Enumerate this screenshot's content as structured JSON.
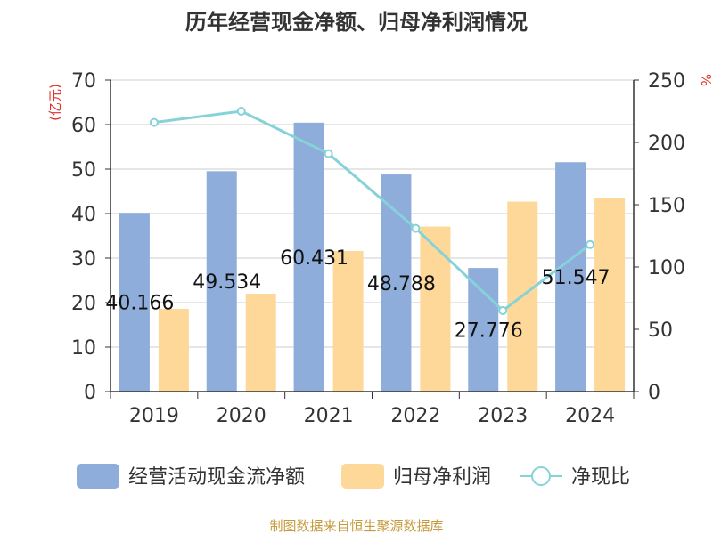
{
  "chart_data": {
    "type": "bar",
    "title": "历年经营现金净额、归母净利润情况",
    "categories": [
      "2019",
      "2020",
      "2021",
      "2022",
      "2023",
      "2024"
    ],
    "series": [
      {
        "name": "经营活动现金流净额",
        "type": "bar",
        "axis": "left",
        "color": "#8EADDB",
        "values": [
          40.166,
          49.534,
          60.431,
          48.788,
          27.776,
          51.547
        ],
        "labels": [
          "40.166",
          "49.534",
          "60.431",
          "48.788",
          "27.776",
          "51.547"
        ]
      },
      {
        "name": "归母净利润",
        "type": "bar",
        "axis": "left",
        "color": "#FDD899",
        "values": [
          18.6,
          22.0,
          31.6,
          37.1,
          42.7,
          43.5
        ]
      },
      {
        "name": "净现比",
        "type": "line",
        "axis": "right",
        "color": "#86D2D9",
        "values": [
          216,
          225,
          191,
          131,
          65,
          118
        ]
      }
    ],
    "left_axis": {
      "label": "(亿元)",
      "ylim": [
        0,
        70
      ],
      "ticks": [
        "0",
        "10",
        "20",
        "30",
        "40",
        "50",
        "60",
        "70"
      ]
    },
    "right_axis": {
      "label": "%",
      "ylim": [
        0,
        250
      ],
      "ticks": [
        "0",
        "50",
        "100",
        "150",
        "200",
        "250"
      ]
    },
    "legend_position": "bottom",
    "grid": true,
    "source": "制图数据来自恒生聚源数据库"
  }
}
